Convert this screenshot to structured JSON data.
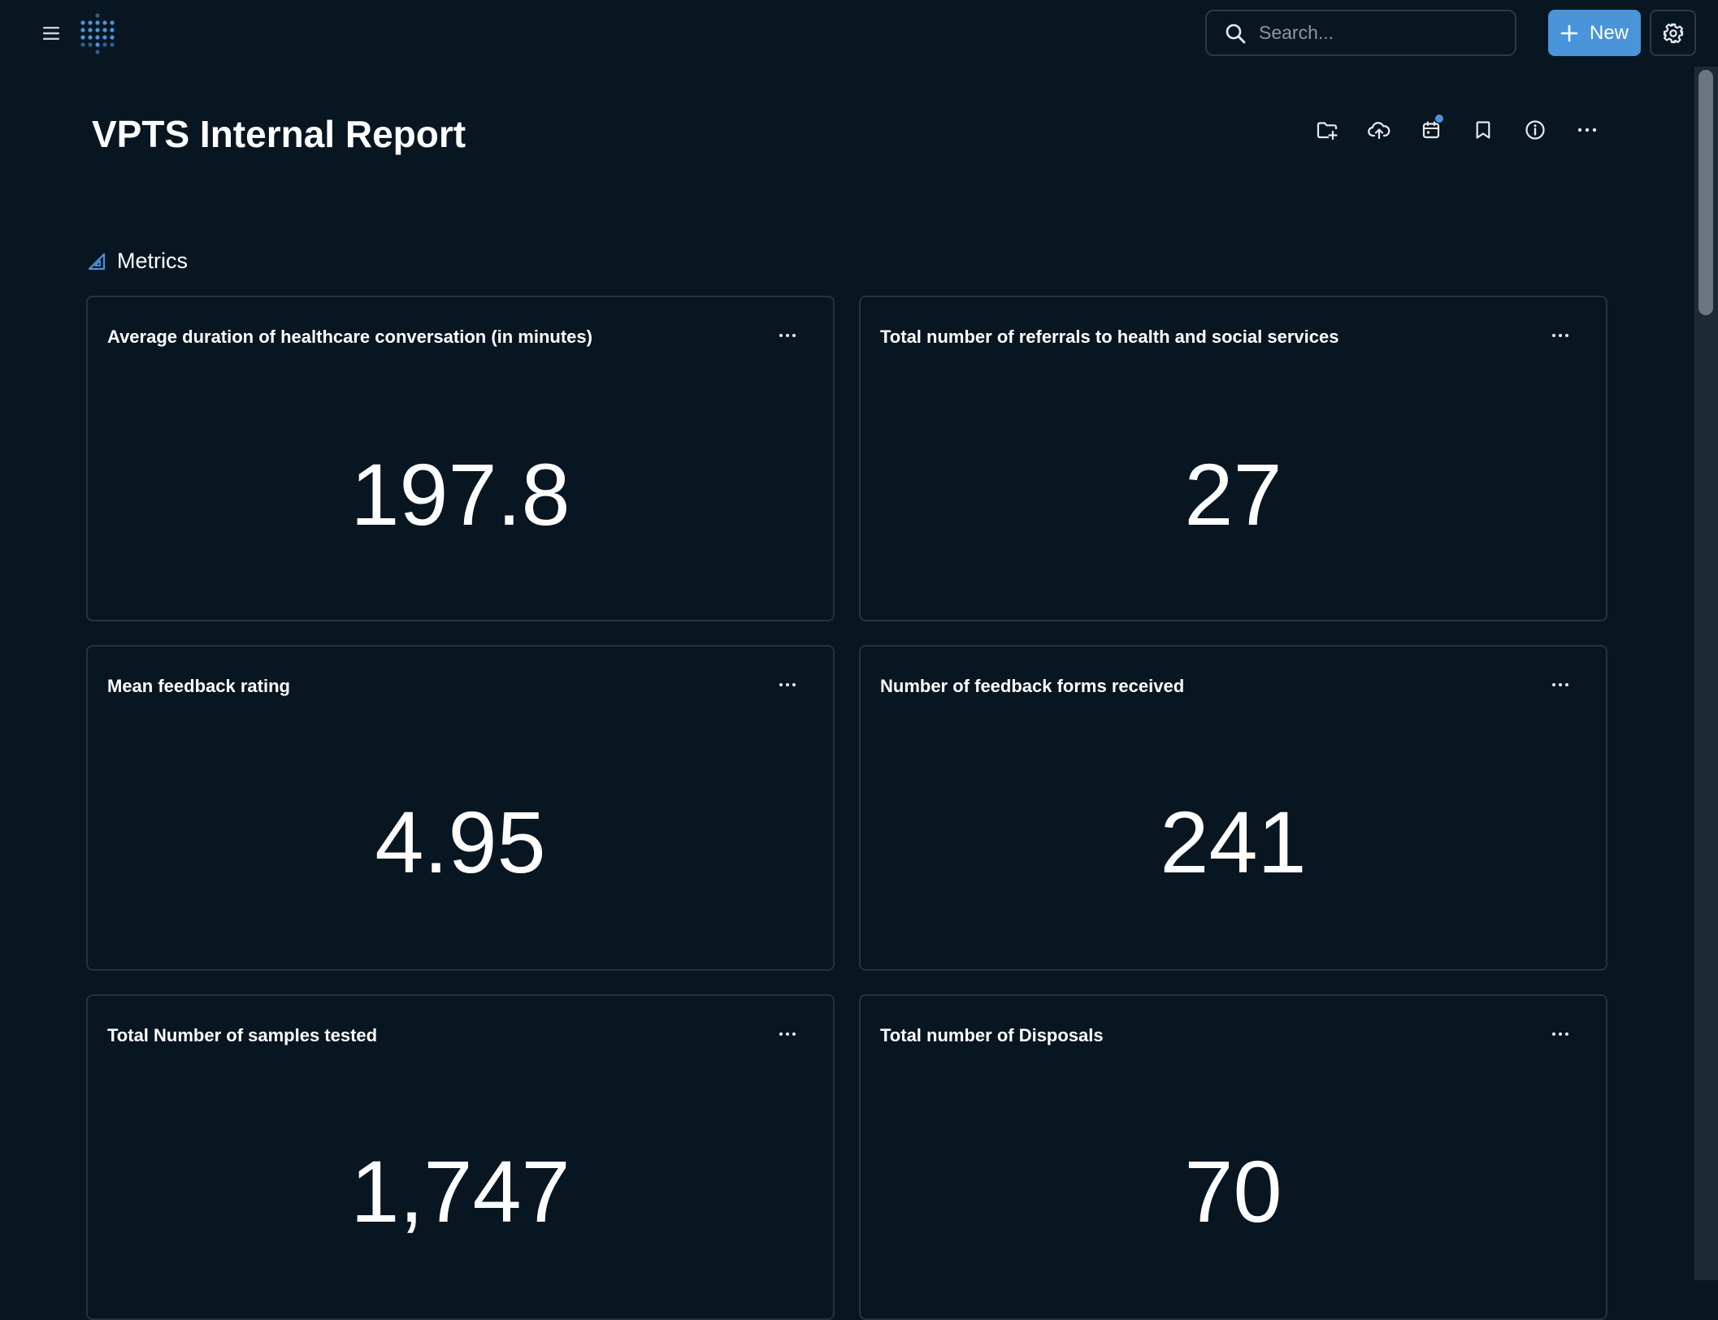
{
  "topbar": {
    "search_placeholder": "Search...",
    "new_label": "New"
  },
  "page": {
    "title": "VPTS Internal Report"
  },
  "section": {
    "label": "Metrics"
  },
  "cards": [
    {
      "title": "Average duration of healthcare conversation (in minutes)",
      "value": "197.8"
    },
    {
      "title": "Total number of referrals to health and social services",
      "value": "27"
    },
    {
      "title": "Mean feedback rating",
      "value": "4.95"
    },
    {
      "title": "Number of feedback forms received",
      "value": "241"
    },
    {
      "title": "Total Number of samples tested",
      "value": "1,747"
    },
    {
      "title": "Total number of Disposals",
      "value": "70"
    }
  ],
  "colors": {
    "background": "#081622",
    "accent": "#4a95d9",
    "card_border": "#253340"
  }
}
